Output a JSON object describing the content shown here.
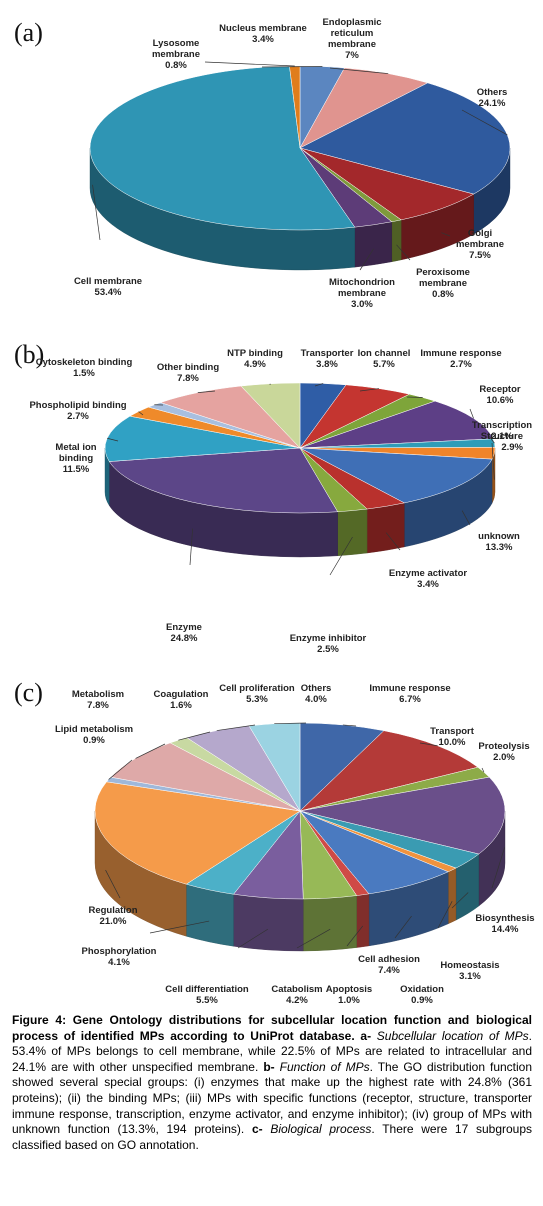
{
  "chart_data": [
    {
      "type": "pie",
      "panel": "(a)",
      "categories": [
        "Nucleus membrane",
        "Endoplasmic reticulum membrane",
        "Others",
        "Golgi membrane",
        "Peroxisome membrane",
        "Mitochondrion membrane",
        "Cell membrane",
        "Lysosome membrane"
      ],
      "values": [
        3.4,
        7,
        24.1,
        7.5,
        0.8,
        3.0,
        53.4,
        0.8
      ],
      "value_labels": [
        "3.4%",
        "7%",
        "24.1%",
        "7.5%",
        "0.8%",
        "3.0%",
        "53.4%",
        "0.8%"
      ],
      "colors": [
        "#5b86c0",
        "#e0948f",
        "#2f5a9e",
        "#a3282b",
        "#7f9a3c",
        "#5d3c78",
        "#2f95b4",
        "#e07d1c"
      ]
    },
    {
      "type": "pie",
      "panel": "(b)",
      "categories": [
        "Transporter",
        "Ion channel",
        "Immune response",
        "Receptor",
        "Transcription",
        "Structure",
        "unknown",
        "Enzyme activator",
        "Enzyme inhibitor",
        "Enzyme",
        "Metal ion binding",
        "Phospholipid binding",
        "Cytoskeleton binding",
        "Other binding",
        "NTP binding"
      ],
      "values": [
        3.8,
        5.7,
        2.7,
        10.6,
        2.1,
        2.9,
        13.3,
        3.4,
        2.5,
        24.8,
        11.5,
        2.7,
        1.5,
        7.8,
        4.9
      ],
      "value_labels": [
        "3.8%",
        "5.7%",
        "2.7%",
        "10.6%",
        "2.1%",
        "2.9%",
        "13.3%",
        "3.4%",
        "2.5%",
        "24.8%",
        "11.5%",
        "2.7%",
        "1.5%",
        "7.8%",
        "4.9%"
      ],
      "colors": [
        "#2f5da6",
        "#c43530",
        "#7ea53a",
        "#5d3f86",
        "#2f9cb8",
        "#f0842a",
        "#3f6fb6",
        "#b9312d",
        "#87a93e",
        "#5c4688",
        "#30a1c4",
        "#ef8a2a",
        "#a8bfdf",
        "#e5a3a0",
        "#c9d79a"
      ]
    },
    {
      "type": "pie",
      "panel": "(c)",
      "categories": [
        "Immune response",
        "Transport",
        "Proteolysis",
        "Biosynthesis",
        "Homeostasis",
        "Oxidation",
        "Cell adhesion",
        "Apoptosis",
        "Catabolism",
        "Cell differentiation",
        "Phosphorylation",
        "Regulation",
        "Lipid metabolism",
        "Metabolism",
        "Coagulation",
        "Cell proliferation",
        "Others"
      ],
      "values": [
        6.7,
        10.0,
        2.0,
        14.4,
        3.1,
        0.9,
        7.4,
        1.0,
        4.2,
        5.5,
        4.1,
        21.0,
        0.9,
        7.8,
        1.6,
        5.3,
        4.0
      ],
      "value_labels": [
        "6.7%",
        "10.0%",
        "2.0%",
        "14.4%",
        "3.1%",
        "0.9%",
        "7.4%",
        "1.0%",
        "4.2%",
        "5.5%",
        "4.1%",
        "21.0%",
        "0.9%",
        "7.8%",
        "1.6%",
        "5.3%",
        "4.0%"
      ],
      "colors": [
        "#3f67a8",
        "#b43a38",
        "#8dab48",
        "#6a4f8a",
        "#3a9bb2",
        "#f0933e",
        "#4a7ac0",
        "#cf4a46",
        "#97b957",
        "#7a5e9e",
        "#4cb0c8",
        "#f59b4a",
        "#9fb8da",
        "#dea9a8",
        "#c8d9a2",
        "#b5a8cc",
        "#9bd3e2"
      ]
    }
  ],
  "figure": {
    "panel_a": "(a)",
    "panel_b": "(b)",
    "panel_c": "(c)"
  },
  "caption": {
    "title": "Figure 4: Gene Ontology distributions for subcellular location function and biological process of identified MPs according to UniProt database.",
    "a_label": "a-",
    "a_title": "Subcellular location of MPs",
    "a_text": ". 53.4% of MPs belongs to cell membrane, while 22.5% of MPs are related to intracellular and 24.1% are with other unspecified membrane.",
    "b_label": "b-",
    "b_title": "Function of MPs",
    "b_text": ". The GO distribution function showed several special groups: (i) enzymes that make up the highest rate with 24.8% (361 proteins); (ii) the binding MPs; (iii) MPs with specific functions (receptor, structure, transporter immune response, transcription, enzyme activator, and enzyme inhibitor); (iv) group of MPs with unknown function (13.3%, 194 proteins).",
    "c_label": "c-",
    "c_title": "Biological process",
    "c_text": ". There were 17 subgroups classified based on GO annotation."
  }
}
